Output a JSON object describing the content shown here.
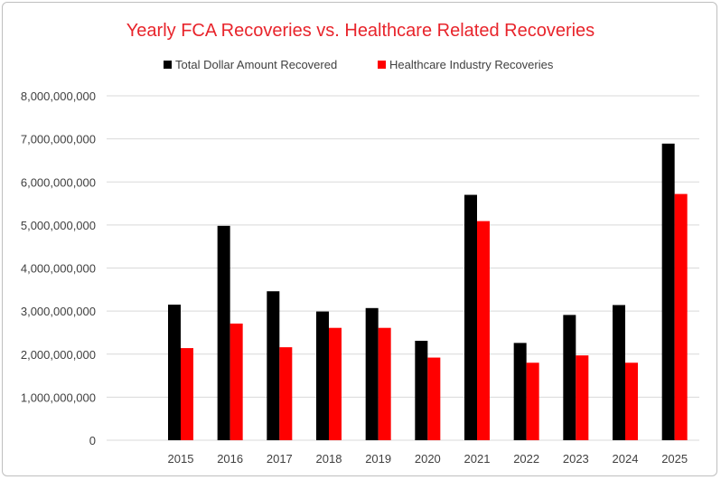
{
  "chart_data": {
    "type": "bar",
    "title": "Yearly FCA Recoveries vs. Healthcare Related Recoveries",
    "xlabel": "",
    "ylabel": "",
    "ylim": [
      0,
      8000000000
    ],
    "yticks": [
      0,
      1000000000,
      2000000000,
      3000000000,
      4000000000,
      5000000000,
      6000000000,
      7000000000,
      8000000000
    ],
    "ytick_labels": [
      "0",
      "1,000,000,000",
      "2,000,000,000",
      "3,000,000,000",
      "4,000,000,000",
      "5,000,000,000",
      "6,000,000,000",
      "7,000,000,000",
      "8,000,000,000"
    ],
    "categories": [
      "",
      "2015",
      "2016",
      "2017",
      "2018",
      "2019",
      "2020",
      "2021",
      "2022",
      "2023",
      "2024",
      "2025"
    ],
    "series": [
      {
        "name": "Total Dollar Amount Recovered",
        "color": "#000000",
        "values": [
          null,
          3150000000,
          4980000000,
          3460000000,
          2990000000,
          3070000000,
          2310000000,
          5700000000,
          2260000000,
          2910000000,
          3140000000,
          6890000000
        ]
      },
      {
        "name": "Healthcare Industry Recoveries",
        "color": "#ff0000",
        "values": [
          null,
          2140000000,
          2710000000,
          2160000000,
          2610000000,
          2610000000,
          1920000000,
          5090000000,
          1800000000,
          1970000000,
          1800000000,
          5720000000
        ]
      }
    ],
    "grid": true,
    "legend_position": "top",
    "title_color": "#e8242b",
    "gridline_color": "#d9d9d9",
    "text_color": "#404040"
  }
}
